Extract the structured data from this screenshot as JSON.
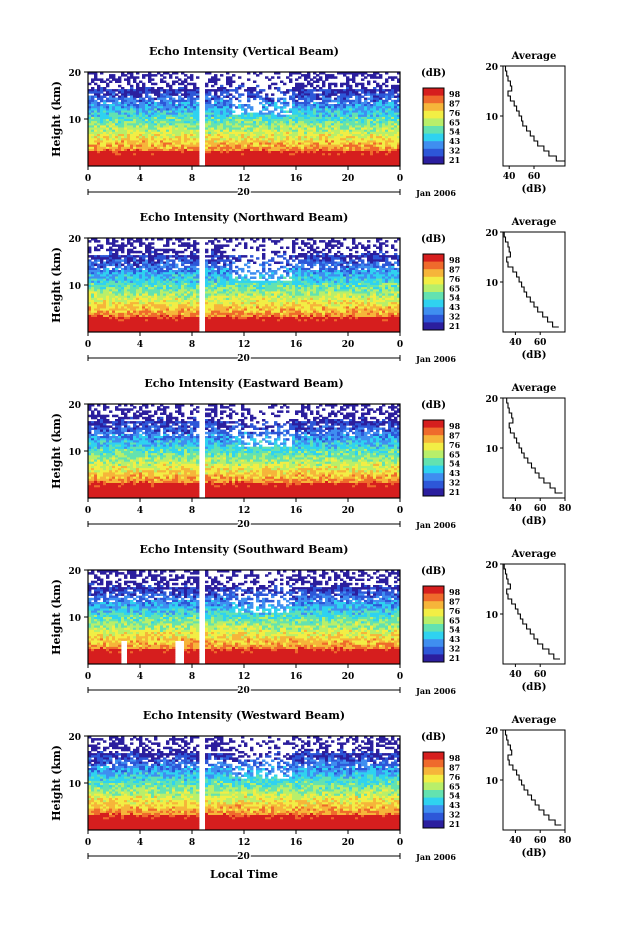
{
  "figure": {
    "panels": [
      {
        "title": "Echo Intensity (Vertical Beam)",
        "ylabel": "Height (km)",
        "yticks": [
          "20",
          "10"
        ],
        "xticks": [
          "0",
          "4",
          "8",
          "12",
          "16",
          "20",
          "0"
        ],
        "date_marker": "20",
        "date_label": "Jan 2006",
        "colorbar_label": "(dB)",
        "colorbar_ticks": [
          "98",
          "87",
          "76",
          "65",
          "54",
          "43",
          "32",
          "21"
        ],
        "profile_title": "Average",
        "profile_yticks": [
          "20",
          "10"
        ],
        "profile_xticks": [
          "40",
          "60"
        ],
        "profile_xlabel": "(dB)"
      },
      {
        "title": "Echo Intensity (Northward Beam)",
        "ylabel": "Height (km)",
        "yticks": [
          "20",
          "10"
        ],
        "xticks": [
          "0",
          "4",
          "8",
          "12",
          "16",
          "20",
          "0"
        ],
        "date_marker": "20",
        "date_label": "Jan 2006",
        "colorbar_label": "(dB)",
        "colorbar_ticks": [
          "98",
          "87",
          "76",
          "65",
          "54",
          "43",
          "32",
          "21"
        ],
        "profile_title": "Average",
        "profile_yticks": [
          "20",
          "10"
        ],
        "profile_xticks": [
          "40",
          "60"
        ],
        "profile_xlabel": "(dB)"
      },
      {
        "title": "Echo Intensity (Eastward Beam)",
        "ylabel": "Height (km)",
        "yticks": [
          "20",
          "10"
        ],
        "xticks": [
          "0",
          "4",
          "8",
          "12",
          "16",
          "20",
          "0"
        ],
        "date_marker": "20",
        "date_label": "Jan 2006",
        "colorbar_label": "(dB)",
        "colorbar_ticks": [
          "98",
          "87",
          "76",
          "65",
          "54",
          "43",
          "32",
          "21"
        ],
        "profile_title": "Average",
        "profile_yticks": [
          "20",
          "10"
        ],
        "profile_xticks": [
          "40",
          "60",
          "80"
        ],
        "profile_xlabel": "(dB)"
      },
      {
        "title": "Echo Intensity (Southward Beam)",
        "ylabel": "Height (km)",
        "yticks": [
          "20",
          "10"
        ],
        "xticks": [
          "0",
          "4",
          "8",
          "12",
          "16",
          "20",
          "0"
        ],
        "date_marker": "20",
        "date_label": "Jan 2006",
        "colorbar_label": "(dB)",
        "colorbar_ticks": [
          "98",
          "87",
          "76",
          "65",
          "54",
          "43",
          "32",
          "21"
        ],
        "profile_title": "Average",
        "profile_yticks": [
          "20",
          "10"
        ],
        "profile_xticks": [
          "40",
          "60"
        ],
        "profile_xlabel": "(dB)"
      },
      {
        "title": "Echo Intensity (Westward Beam)",
        "ylabel": "Height (km)",
        "yticks": [
          "20",
          "10"
        ],
        "xticks": [
          "0",
          "4",
          "8",
          "12",
          "16",
          "20",
          "0"
        ],
        "date_marker": "20",
        "date_label": "Jan 2006",
        "colorbar_label": "(dB)",
        "colorbar_ticks": [
          "98",
          "87",
          "76",
          "65",
          "54",
          "43",
          "32",
          "21"
        ],
        "profile_title": "Average",
        "profile_yticks": [
          "20",
          "10"
        ],
        "profile_xticks": [
          "40",
          "60",
          "80"
        ],
        "profile_xlabel": "(dB)"
      }
    ],
    "xlabel": "Local Time"
  },
  "colors": {
    "colormap": [
      "#2b1e9e",
      "#2d57d8",
      "#3f8ef0",
      "#2fd2f0",
      "#63e2b0",
      "#b8ef6a",
      "#f2ee45",
      "#f6b53a",
      "#ef6a2c",
      "#d61e1e"
    ],
    "line": "#000000"
  },
  "chart_data": [
    {
      "type": "heatmap",
      "title": "Echo Intensity (Vertical Beam)",
      "xlabel": "Local Time",
      "ylabel": "Height (km)",
      "x_range_hours": [
        0,
        24
      ],
      "y_range_km": [
        0,
        20
      ],
      "date": "20 Jan 2006",
      "colorbar_range_db": [
        21,
        98
      ],
      "data_gap_hours": [
        8.6,
        8.9
      ],
      "mean_db_profile": {
        "height_km": [
          1,
          2,
          3,
          4,
          5,
          6,
          7,
          8,
          9,
          10,
          11,
          12,
          13,
          14,
          15,
          16,
          17,
          18,
          19,
          20
        ],
        "db": [
          85,
          78,
          72,
          68,
          63,
          60,
          57,
          54,
          51,
          50,
          48,
          46,
          44,
          41,
          39,
          42,
          41,
          39,
          38,
          37
        ]
      },
      "profile_xlim": [
        35,
        85
      ]
    },
    {
      "type": "heatmap",
      "title": "Echo Intensity (Northward Beam)",
      "xlabel": "Local Time",
      "ylabel": "Height (km)",
      "x_range_hours": [
        0,
        24
      ],
      "y_range_km": [
        0,
        20
      ],
      "date": "20 Jan 2006",
      "colorbar_range_db": [
        21,
        98
      ],
      "data_gap_hours": [
        8.6,
        8.9
      ],
      "mean_db_profile": {
        "height_km": [
          1,
          2,
          3,
          4,
          5,
          6,
          7,
          8,
          9,
          10,
          11,
          12,
          13,
          14,
          15,
          16,
          17,
          18,
          19,
          20
        ],
        "db": [
          75,
          70,
          66,
          62,
          58,
          55,
          52,
          49,
          47,
          45,
          43,
          41,
          38,
          34,
          33,
          36,
          35,
          34,
          32,
          31
        ]
      },
      "profile_xlim": [
        30,
        80
      ]
    },
    {
      "type": "heatmap",
      "title": "Echo Intensity (Eastward Beam)",
      "xlabel": "Local Time",
      "ylabel": "Height (km)",
      "x_range_hours": [
        0,
        24
      ],
      "y_range_km": [
        0,
        20
      ],
      "date": "20 Jan 2006",
      "colorbar_range_db": [
        21,
        98
      ],
      "data_gap_hours": [
        8.6,
        8.9
      ],
      "mean_db_profile": {
        "height_km": [
          1,
          2,
          3,
          4,
          5,
          6,
          7,
          8,
          9,
          10,
          11,
          12,
          13,
          14,
          15,
          16,
          17,
          18,
          19,
          20
        ],
        "db": [
          78,
          72,
          68,
          63,
          59,
          56,
          53,
          50,
          47,
          45,
          43,
          41,
          39,
          36,
          35,
          38,
          37,
          35,
          34,
          33
        ]
      },
      "profile_xlim": [
        30,
        80
      ]
    },
    {
      "type": "heatmap",
      "title": "Echo Intensity (Southward Beam)",
      "xlabel": "Local Time",
      "ylabel": "Height (km)",
      "x_range_hours": [
        0,
        24
      ],
      "y_range_km": [
        0,
        20
      ],
      "date": "20 Jan 2006",
      "colorbar_range_db": [
        21,
        98
      ],
      "data_gap_hours": [
        8.6,
        8.9
      ],
      "mean_db_profile": {
        "height_km": [
          1,
          2,
          3,
          4,
          5,
          6,
          7,
          8,
          9,
          10,
          11,
          12,
          13,
          14,
          15,
          16,
          17,
          18,
          19,
          20
        ],
        "db": [
          76,
          71,
          67,
          62,
          58,
          55,
          52,
          49,
          46,
          44,
          42,
          40,
          37,
          34,
          33,
          36,
          34,
          33,
          32,
          31
        ]
      },
      "profile_xlim": [
        30,
        80
      ]
    },
    {
      "type": "heatmap",
      "title": "Echo Intensity (Westward Beam)",
      "xlabel": "Local Time",
      "ylabel": "Height (km)",
      "x_range_hours": [
        0,
        24
      ],
      "y_range_km": [
        0,
        20
      ],
      "date": "20 Jan 2006",
      "colorbar_range_db": [
        21,
        98
      ],
      "data_gap_hours": [
        8.6,
        8.9
      ],
      "mean_db_profile": {
        "height_km": [
          1,
          2,
          3,
          4,
          5,
          6,
          7,
          8,
          9,
          10,
          11,
          12,
          13,
          14,
          15,
          16,
          17,
          18,
          19,
          20
        ],
        "db": [
          77,
          72,
          67,
          63,
          59,
          56,
          53,
          50,
          47,
          45,
          43,
          41,
          38,
          35,
          34,
          37,
          36,
          34,
          33,
          32
        ]
      },
      "profile_xlim": [
        30,
        80
      ]
    }
  ]
}
